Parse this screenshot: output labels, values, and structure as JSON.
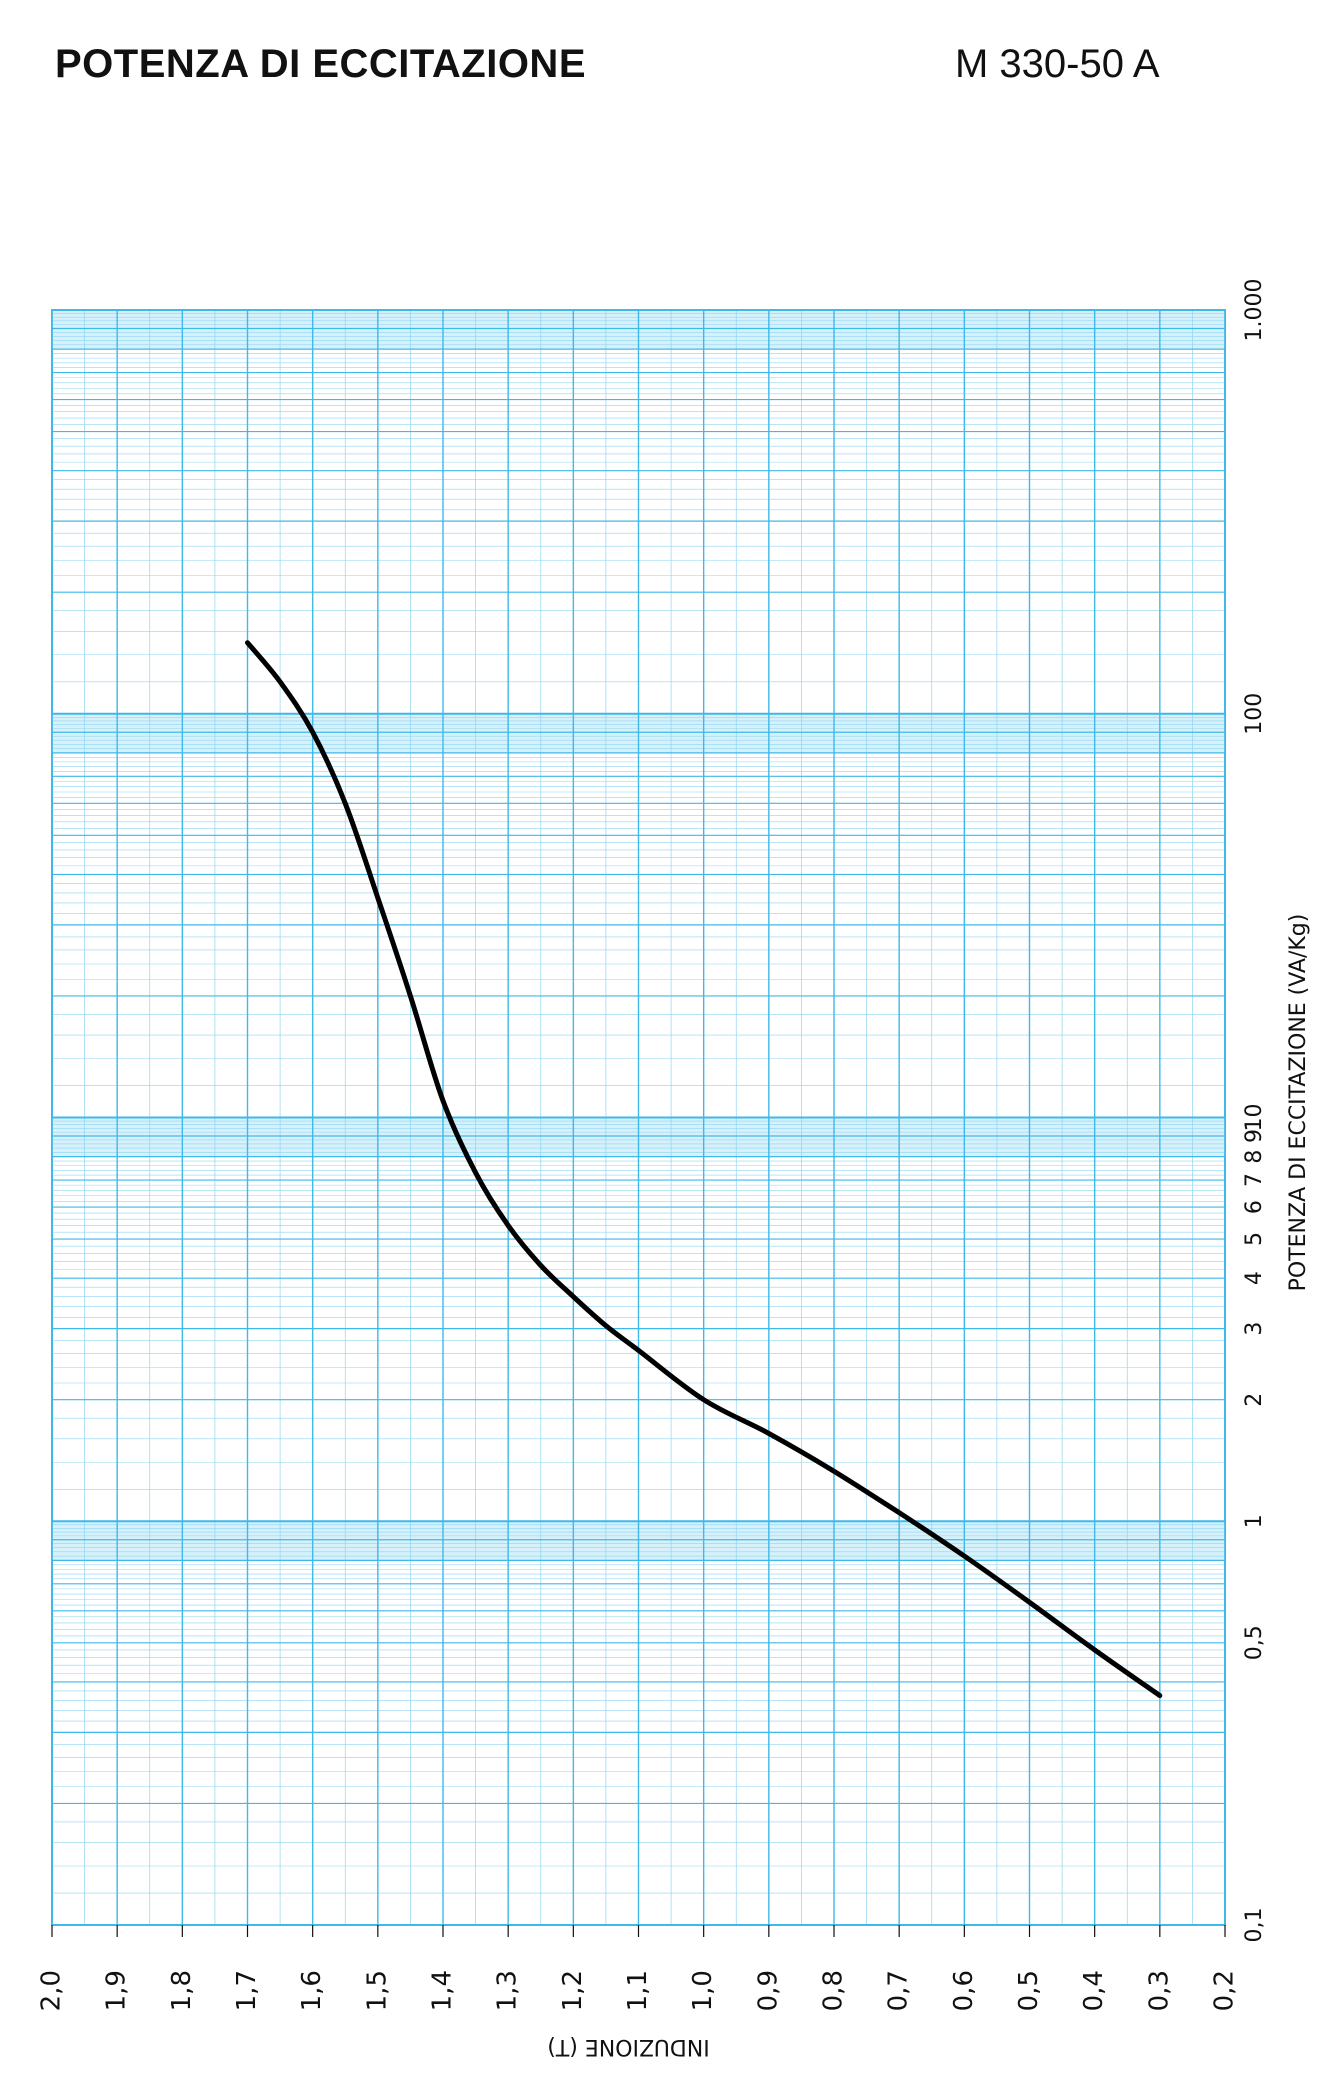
{
  "header": {
    "title": "POTENZA DI ECCITAZIONE",
    "code": "M 330-50 A"
  },
  "colors": {
    "grid": "#3fb8ea",
    "grid_minor": "#8fd5f2",
    "band": "#b7e6f8",
    "curve": "#000000",
    "text": "#111111"
  },
  "chart_data": {
    "type": "line",
    "orientation": "rotated-90",
    "xlabel": "INDUZIONE (T)",
    "ylabel": "POTENZA DI ECCITAZIONE (VA/Kg)",
    "xlim": [
      2.0,
      0.2
    ],
    "ylim": [
      0.1,
      1000
    ],
    "yscale": "log",
    "grid": true,
    "x_ticks": [
      "2,0",
      "1,9",
      "1,8",
      "1,7",
      "1,6",
      "1,5",
      "1,4",
      "1,3",
      "1,2",
      "1,1",
      "1,0",
      "0,9",
      "0,8",
      "0,7",
      "0,6",
      "0,5",
      "0,4",
      "0,3",
      "0,2"
    ],
    "y_ticks": [
      {
        "value": 0.1,
        "label": "0,1"
      },
      {
        "value": 0.5,
        "label": "0,5"
      },
      {
        "value": 1,
        "label": "1"
      },
      {
        "value": 2,
        "label": "2"
      },
      {
        "value": 3,
        "label": "3"
      },
      {
        "value": 4,
        "label": "4"
      },
      {
        "value": 5,
        "label": "5"
      },
      {
        "value": 6,
        "label": "6"
      },
      {
        "value": 7,
        "label": "7"
      },
      {
        "value": 8,
        "label": "8"
      },
      {
        "value": 9,
        "label": "9"
      },
      {
        "value": 10,
        "label": "10"
      },
      {
        "value": 100,
        "label": "100"
      },
      {
        "value": 1000,
        "label": "1.000"
      }
    ],
    "series": [
      {
        "points": [
          {
            "x": 1.7,
            "y": 150
          },
          {
            "x": 1.65,
            "y": 120
          },
          {
            "x": 1.6,
            "y": 90
          },
          {
            "x": 1.55,
            "y": 60
          },
          {
            "x": 1.5,
            "y": 35
          },
          {
            "x": 1.45,
            "y": 20
          },
          {
            "x": 1.4,
            "y": 11
          },
          {
            "x": 1.35,
            "y": 7.3
          },
          {
            "x": 1.3,
            "y": 5.4
          },
          {
            "x": 1.25,
            "y": 4.3
          },
          {
            "x": 1.2,
            "y": 3.6
          },
          {
            "x": 1.15,
            "y": 3.05
          },
          {
            "x": 1.1,
            "y": 2.65
          },
          {
            "x": 1.0,
            "y": 2.0
          },
          {
            "x": 0.9,
            "y": 1.65
          },
          {
            "x": 0.8,
            "y": 1.33
          },
          {
            "x": 0.7,
            "y": 1.05
          },
          {
            "x": 0.6,
            "y": 0.82
          },
          {
            "x": 0.5,
            "y": 0.63
          },
          {
            "x": 0.4,
            "y": 0.48
          },
          {
            "x": 0.3,
            "y": 0.37
          }
        ]
      }
    ]
  }
}
